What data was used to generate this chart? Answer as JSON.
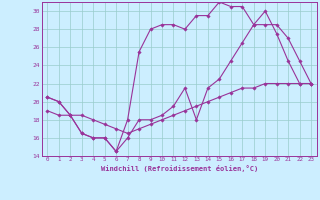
{
  "xlabel": "Windchill (Refroidissement éolien,°C)",
  "xlim": [
    -0.5,
    23.5
  ],
  "ylim": [
    14,
    31
  ],
  "yticks": [
    14,
    16,
    18,
    20,
    22,
    24,
    26,
    28,
    30
  ],
  "xticks": [
    0,
    1,
    2,
    3,
    4,
    5,
    6,
    7,
    8,
    9,
    10,
    11,
    12,
    13,
    14,
    15,
    16,
    17,
    18,
    19,
    20,
    21,
    22,
    23
  ],
  "line_color": "#993399",
  "bg_color": "#cceeff",
  "grid_color": "#99cccc",
  "line1_x": [
    0,
    1,
    2,
    3,
    4,
    5,
    6,
    7,
    8,
    9,
    10,
    11,
    12,
    13,
    14,
    15,
    16,
    17,
    18,
    19,
    20,
    21,
    22,
    23
  ],
  "line1_y": [
    20.5,
    20.0,
    18.5,
    16.5,
    16.0,
    16.0,
    14.5,
    18.0,
    25.5,
    28.0,
    28.5,
    28.5,
    28.0,
    29.5,
    29.5,
    31.0,
    30.5,
    30.5,
    28.5,
    30.0,
    27.5,
    24.5,
    22.0,
    22.0
  ],
  "line2_x": [
    0,
    1,
    2,
    3,
    4,
    5,
    6,
    7,
    8,
    9,
    10,
    11,
    12,
    13,
    14,
    15,
    16,
    17,
    18,
    19,
    20,
    21,
    22,
    23
  ],
  "line2_y": [
    19.0,
    18.5,
    18.5,
    18.5,
    18.0,
    17.5,
    17.0,
    16.5,
    17.0,
    17.5,
    18.0,
    18.5,
    19.0,
    19.5,
    20.0,
    20.5,
    21.0,
    21.5,
    21.5,
    22.0,
    22.0,
    22.0,
    22.0,
    22.0
  ],
  "line3_x": [
    0,
    1,
    2,
    3,
    4,
    5,
    6,
    7,
    8,
    9,
    10,
    11,
    12,
    13,
    14,
    15,
    16,
    17,
    18,
    19,
    20,
    21,
    22,
    23
  ],
  "line3_y": [
    20.5,
    20.0,
    18.5,
    16.5,
    16.0,
    16.0,
    14.5,
    16.0,
    18.0,
    18.0,
    18.5,
    19.5,
    21.5,
    18.0,
    21.5,
    22.5,
    24.5,
    26.5,
    28.5,
    28.5,
    28.5,
    27.0,
    24.5,
    22.0
  ]
}
